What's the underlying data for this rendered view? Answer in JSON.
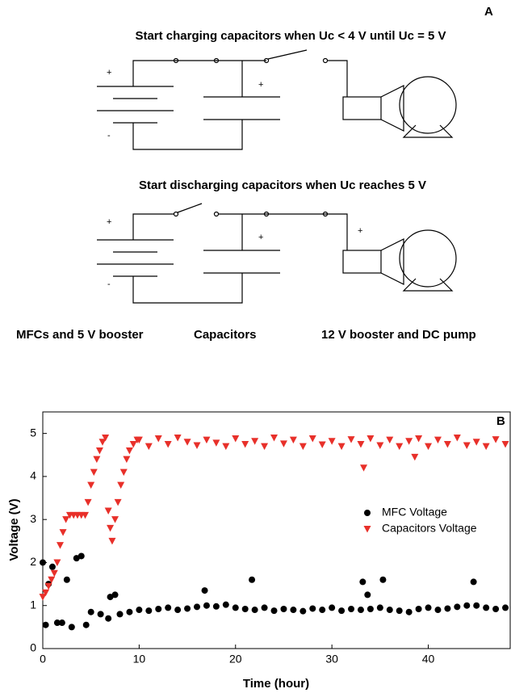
{
  "panel_a": {
    "label": "A",
    "charging_title": "Start charging capacitors when Uc < 4 V until Uc = 5 V",
    "discharging_title": "Start discharging capacitors when Uc reaches 5 V",
    "plus": "+",
    "minus": "-",
    "captions": [
      "MFCs and 5 V booster",
      "Capacitors",
      "12 V booster and DC pump"
    ]
  },
  "chart_data": {
    "type": "scatter",
    "panel_label": "B",
    "x_label": "Time (hour)",
    "y_label": "Voltage (V)",
    "xlim": [
      0,
      48.5
    ],
    "ylim": [
      0,
      5.5
    ],
    "xticks": [
      0,
      10,
      20,
      30,
      40
    ],
    "yticks": [
      0,
      1,
      2,
      3,
      4,
      5
    ],
    "legend": "upper right",
    "series": [
      {
        "name": "MFC Voltage",
        "color": "#000000",
        "marker": "circle",
        "x": [
          0,
          0.3,
          0.6,
          1,
          1.5,
          2,
          2.5,
          3,
          3.5,
          4,
          4.5,
          5,
          6,
          6.8,
          7,
          7.5,
          8,
          9,
          10,
          11,
          12,
          13,
          14,
          15,
          16,
          16.8,
          17,
          18,
          19,
          20,
          21,
          21.7,
          22,
          23,
          24,
          25,
          26,
          27,
          28,
          29,
          30,
          31,
          32,
          33,
          33.2,
          33.7,
          34,
          35,
          35.3,
          36,
          37,
          38,
          39,
          40,
          41,
          42,
          43,
          44,
          44.7,
          45,
          46,
          47,
          48
        ],
        "values": [
          2.0,
          0.55,
          1.5,
          1.9,
          0.6,
          0.6,
          1.6,
          0.5,
          2.1,
          2.15,
          0.55,
          0.85,
          0.8,
          0.7,
          1.2,
          1.25,
          0.8,
          0.85,
          0.9,
          0.88,
          0.92,
          0.95,
          0.9,
          0.93,
          0.97,
          1.35,
          1.0,
          0.98,
          1.02,
          0.95,
          0.92,
          1.6,
          0.9,
          0.95,
          0.88,
          0.92,
          0.9,
          0.87,
          0.93,
          0.9,
          0.95,
          0.88,
          0.92,
          0.9,
          1.55,
          1.25,
          0.92,
          0.95,
          1.6,
          0.9,
          0.88,
          0.85,
          0.92,
          0.95,
          0.9,
          0.93,
          0.97,
          1.0,
          1.55,
          1.0,
          0.95,
          0.92,
          0.95
        ]
      },
      {
        "name": "Capacitors Voltage",
        "color": "#e8302a",
        "marker": "triangle-down",
        "x": [
          0,
          0.3,
          0.6,
          0.9,
          1.2,
          1.5,
          1.8,
          2.1,
          2.4,
          2.8,
          3.2,
          3.6,
          4,
          4.4,
          4.7,
          5,
          5.3,
          5.6,
          5.9,
          6.2,
          6.5,
          6.8,
          7,
          7.2,
          7.5,
          7.8,
          8.1,
          8.4,
          8.7,
          9,
          9.4,
          9.8,
          10,
          11,
          12,
          13,
          14,
          15,
          16,
          17,
          18,
          19,
          20,
          21,
          22,
          23,
          24,
          25,
          26,
          27,
          28,
          29,
          30,
          31,
          32,
          33,
          33.3,
          34,
          35,
          36,
          37,
          38,
          38.6,
          39,
          40,
          41,
          42,
          43,
          44,
          45,
          46,
          47,
          48
        ],
        "values": [
          1.2,
          1.3,
          1.45,
          1.6,
          1.75,
          2.0,
          2.4,
          2.7,
          3.0,
          3.1,
          3.1,
          3.1,
          3.1,
          3.1,
          3.4,
          3.8,
          4.1,
          4.4,
          4.6,
          4.8,
          4.9,
          3.2,
          2.8,
          2.5,
          3.0,
          3.4,
          3.8,
          4.1,
          4.4,
          4.6,
          4.75,
          4.85,
          4.85,
          4.7,
          4.88,
          4.75,
          4.9,
          4.8,
          4.72,
          4.85,
          4.78,
          4.7,
          4.88,
          4.75,
          4.82,
          4.7,
          4.9,
          4.76,
          4.85,
          4.7,
          4.88,
          4.74,
          4.82,
          4.7,
          4.86,
          4.75,
          4.2,
          4.88,
          4.72,
          4.85,
          4.7,
          4.82,
          4.45,
          4.88,
          4.7,
          4.85,
          4.75,
          4.9,
          4.72,
          4.8,
          4.7,
          4.86,
          4.75
        ]
      }
    ]
  }
}
